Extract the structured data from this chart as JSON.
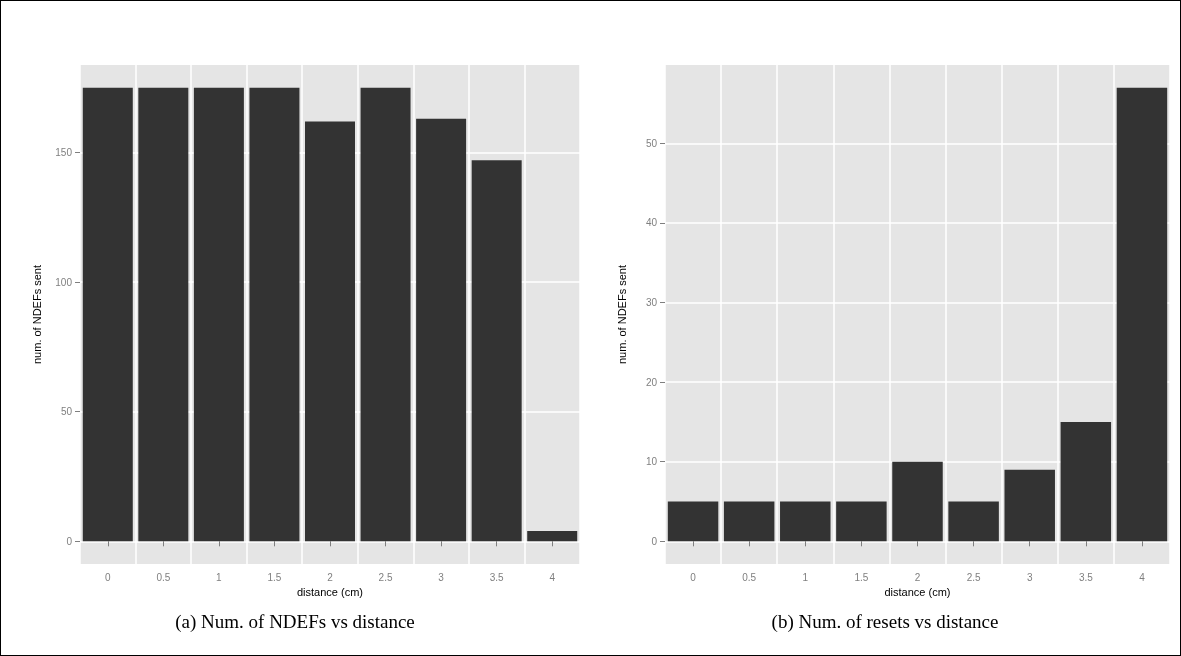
{
  "chart_data": [
    {
      "type": "bar",
      "xlabel": "distance (cm)",
      "ylabel": "num. of NDEFs sent",
      "categories": [
        "0",
        "0.5",
        "1",
        "1.5",
        "2",
        "2.5",
        "3",
        "3.5",
        "4"
      ],
      "values": [
        175,
        175,
        175,
        175,
        162,
        175,
        163,
        147,
        4
      ],
      "color": "#333333",
      "ylim": [
        -8.75,
        183.75
      ],
      "yticks": [
        0,
        50,
        100,
        150
      ],
      "grid": true,
      "annotations": [
        "(a) Num. of NDEFs vs distance"
      ]
    },
    {
      "type": "bar",
      "xlabel": "distance (cm)",
      "ylabel": "num. of NDEFs sent",
      "categories": [
        "0",
        "0.5",
        "1",
        "1.5",
        "2",
        "2.5",
        "3",
        "3.5",
        "4"
      ],
      "values": [
        5,
        5,
        5,
        5,
        10,
        5,
        9,
        15,
        57
      ],
      "color": "#333333",
      "ylim": [
        -2.85,
        59.85
      ],
      "yticks": [
        0,
        10,
        20,
        30,
        40,
        50
      ],
      "grid": true,
      "annotations": [
        "(b) Num. of resets vs distance"
      ]
    }
  ]
}
